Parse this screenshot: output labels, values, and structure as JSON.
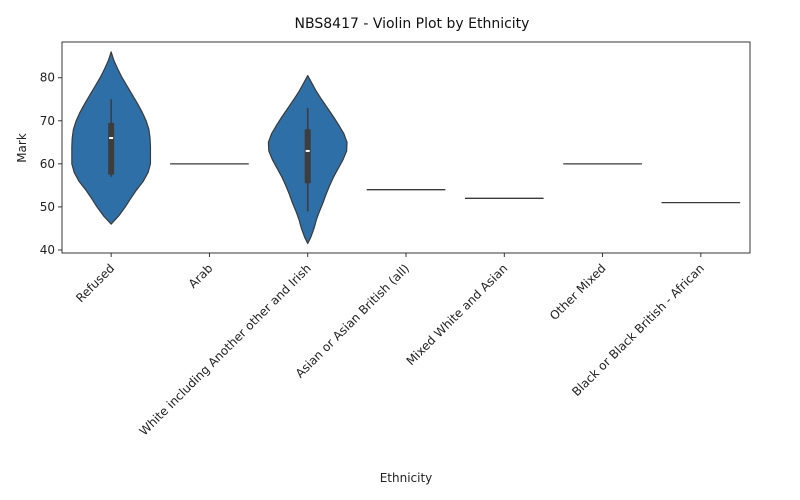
{
  "chart_data": {
    "type": "violin",
    "title": "NBS8417 - Violin Plot by Ethnicity",
    "xlabel": "Ethnicity",
    "ylabel": "Mark",
    "ylim": [
      39.3,
      88.3
    ],
    "yticks": [
      40,
      50,
      60,
      70,
      80
    ],
    "grid": false,
    "legend": "none",
    "color": "#2f6fa7",
    "categories": [
      "Refused",
      "Arab",
      "White including Another other and Irish",
      "Asian or Asian British (all)",
      "Mixed White and Asian",
      "Other Mixed",
      "Black or Black British - African"
    ],
    "violins": [
      {
        "category": "Refused",
        "min": 57,
        "q1": 57.5,
        "median": 66,
        "q3": 69.5,
        "max": 75,
        "density": [
          [
            46,
            0
          ],
          [
            48,
            0.2
          ],
          [
            50,
            0.36
          ],
          [
            52,
            0.5
          ],
          [
            54,
            0.65
          ],
          [
            56,
            0.82
          ],
          [
            58,
            0.94
          ],
          [
            60,
            1.0
          ],
          [
            62,
            1.0
          ],
          [
            64,
            1.0
          ],
          [
            66,
            0.99
          ],
          [
            68,
            0.96
          ],
          [
            70,
            0.89
          ],
          [
            72,
            0.79
          ],
          [
            74,
            0.67
          ],
          [
            76,
            0.54
          ],
          [
            78,
            0.41
          ],
          [
            80,
            0.28
          ],
          [
            82,
            0.17
          ],
          [
            84,
            0.07
          ],
          [
            86,
            0
          ]
        ]
      },
      {
        "category": "Arab",
        "value": 60
      },
      {
        "category": "White including Another other and Irish",
        "min": 49,
        "q1": 55.5,
        "median": 63,
        "q3": 68,
        "max": 73,
        "density": [
          [
            41.5,
            0
          ],
          [
            43,
            0.08
          ],
          [
            45,
            0.16
          ],
          [
            47,
            0.22
          ],
          [
            49,
            0.3
          ],
          [
            51,
            0.39
          ],
          [
            53,
            0.47
          ],
          [
            55,
            0.56
          ],
          [
            57,
            0.66
          ],
          [
            59,
            0.78
          ],
          [
            61,
            0.9
          ],
          [
            63,
            0.99
          ],
          [
            65,
            1.0
          ],
          [
            67,
            0.92
          ],
          [
            69,
            0.79
          ],
          [
            71,
            0.65
          ],
          [
            73,
            0.5
          ],
          [
            75,
            0.35
          ],
          [
            77,
            0.21
          ],
          [
            79,
            0.09
          ],
          [
            80.5,
            0
          ]
        ]
      },
      {
        "category": "Asian or Asian British (all)",
        "value": 54
      },
      {
        "category": "Mixed White and Asian",
        "value": 52
      },
      {
        "category": "Other Mixed",
        "value": 60
      },
      {
        "category": "Black or Black British - African",
        "value": 51
      }
    ]
  }
}
